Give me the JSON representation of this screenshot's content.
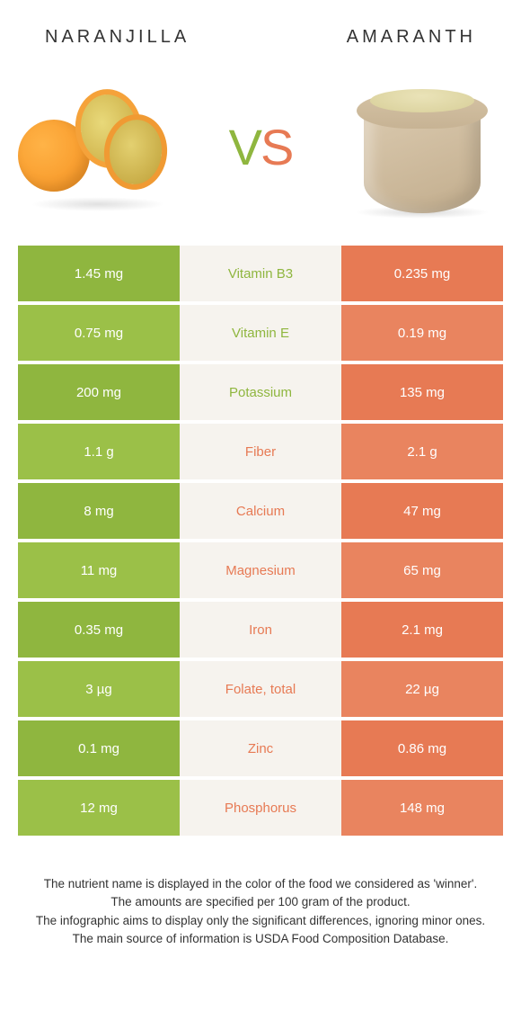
{
  "colors": {
    "green": "#8fb63f",
    "green_alt": "#9bc048",
    "orange": "#e77a54",
    "orange_alt": "#e9845f",
    "white_overlay": "#f6f3ee"
  },
  "header": {
    "left": "Naranjilla",
    "right": "Amaranth"
  },
  "vs": {
    "v": "V",
    "s": "S"
  },
  "rows": [
    {
      "left": "1.45 mg",
      "mid": "Vitamin B3",
      "right": "0.235 mg",
      "winner": "left"
    },
    {
      "left": "0.75 mg",
      "mid": "Vitamin E",
      "right": "0.19 mg",
      "winner": "left"
    },
    {
      "left": "200 mg",
      "mid": "Potassium",
      "right": "135 mg",
      "winner": "left"
    },
    {
      "left": "1.1 g",
      "mid": "Fiber",
      "right": "2.1 g",
      "winner": "right"
    },
    {
      "left": "8 mg",
      "mid": "Calcium",
      "right": "47 mg",
      "winner": "right"
    },
    {
      "left": "11 mg",
      "mid": "Magnesium",
      "right": "65 mg",
      "winner": "right"
    },
    {
      "left": "0.35 mg",
      "mid": "Iron",
      "right": "2.1 mg",
      "winner": "right"
    },
    {
      "left": "3 µg",
      "mid": "Folate, total",
      "right": "22 µg",
      "winner": "right"
    },
    {
      "left": "0.1 mg",
      "mid": "Zinc",
      "right": "0.86 mg",
      "winner": "right"
    },
    {
      "left": "12 mg",
      "mid": "Phosphorus",
      "right": "148 mg",
      "winner": "right"
    }
  ],
  "footer": {
    "l1": "The nutrient name is displayed in the color of the food we considered as 'winner'.",
    "l2": "The amounts are specified per 100 gram of the product.",
    "l3": "The infographic aims to display only the significant differences, ignoring minor ones.",
    "l4": "The main source of information is USDA Food Composition Database."
  }
}
